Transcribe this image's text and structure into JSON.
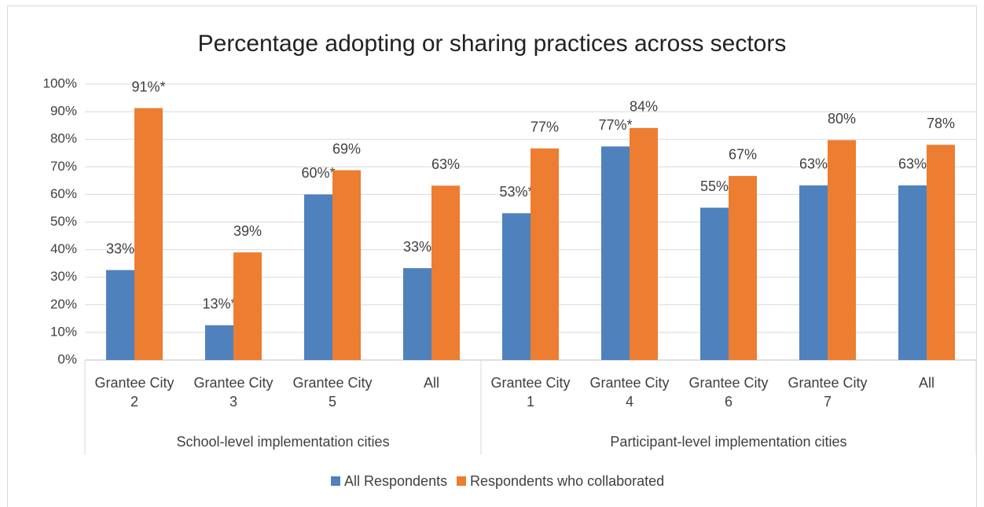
{
  "chart_data": {
    "type": "bar",
    "title": "Percentage adopting or sharing practices across sectors",
    "categories": [
      "Grantee City 2",
      "Grantee City 3",
      "Grantee City 5",
      "All",
      "Grantee City 1",
      "Grantee City 4",
      "Grantee City 6",
      "Grantee City 7",
      "All"
    ],
    "groups": [
      {
        "name": "School-level implementation cities",
        "count": 4
      },
      {
        "name": "Participant-level implementation cities",
        "count": 5
      }
    ],
    "series": [
      {
        "name": "All Respondents",
        "color": "#4f81bd",
        "values": [
          32.6,
          12.6,
          60,
          33.3,
          53.2,
          77.4,
          55.2,
          63.3,
          63.3
        ],
        "value_labels": [
          "33%",
          "13%*",
          "60%*",
          "33%",
          "53%*",
          "77%*",
          "55%",
          "63%",
          "63%"
        ]
      },
      {
        "name": "Respondents who collaborated",
        "color": "#ed7d31",
        "values": [
          91.3,
          39,
          68.8,
          63.2,
          76.7,
          84.1,
          66.7,
          79.7,
          78
        ],
        "value_labels": [
          "91%*",
          "39%",
          "69%",
          "63%",
          "77%",
          "84%",
          "67%",
          "80%",
          "78%"
        ]
      }
    ],
    "ylim": [
      0,
      100
    ],
    "yticks": [
      {
        "value": 0,
        "label": "0%"
      },
      {
        "value": 10,
        "label": "10%"
      },
      {
        "value": 20,
        "label": "20%"
      },
      {
        "value": 30,
        "label": "30%"
      },
      {
        "value": 40,
        "label": "40%"
      },
      {
        "value": 50,
        "label": "50%"
      },
      {
        "value": 60,
        "label": "60%"
      },
      {
        "value": 70,
        "label": "70%"
      },
      {
        "value": 80,
        "label": "80%"
      },
      {
        "value": 90,
        "label": "90%"
      },
      {
        "value": 100,
        "label": "100%"
      }
    ],
    "grid": true,
    "legend": "bottom"
  }
}
